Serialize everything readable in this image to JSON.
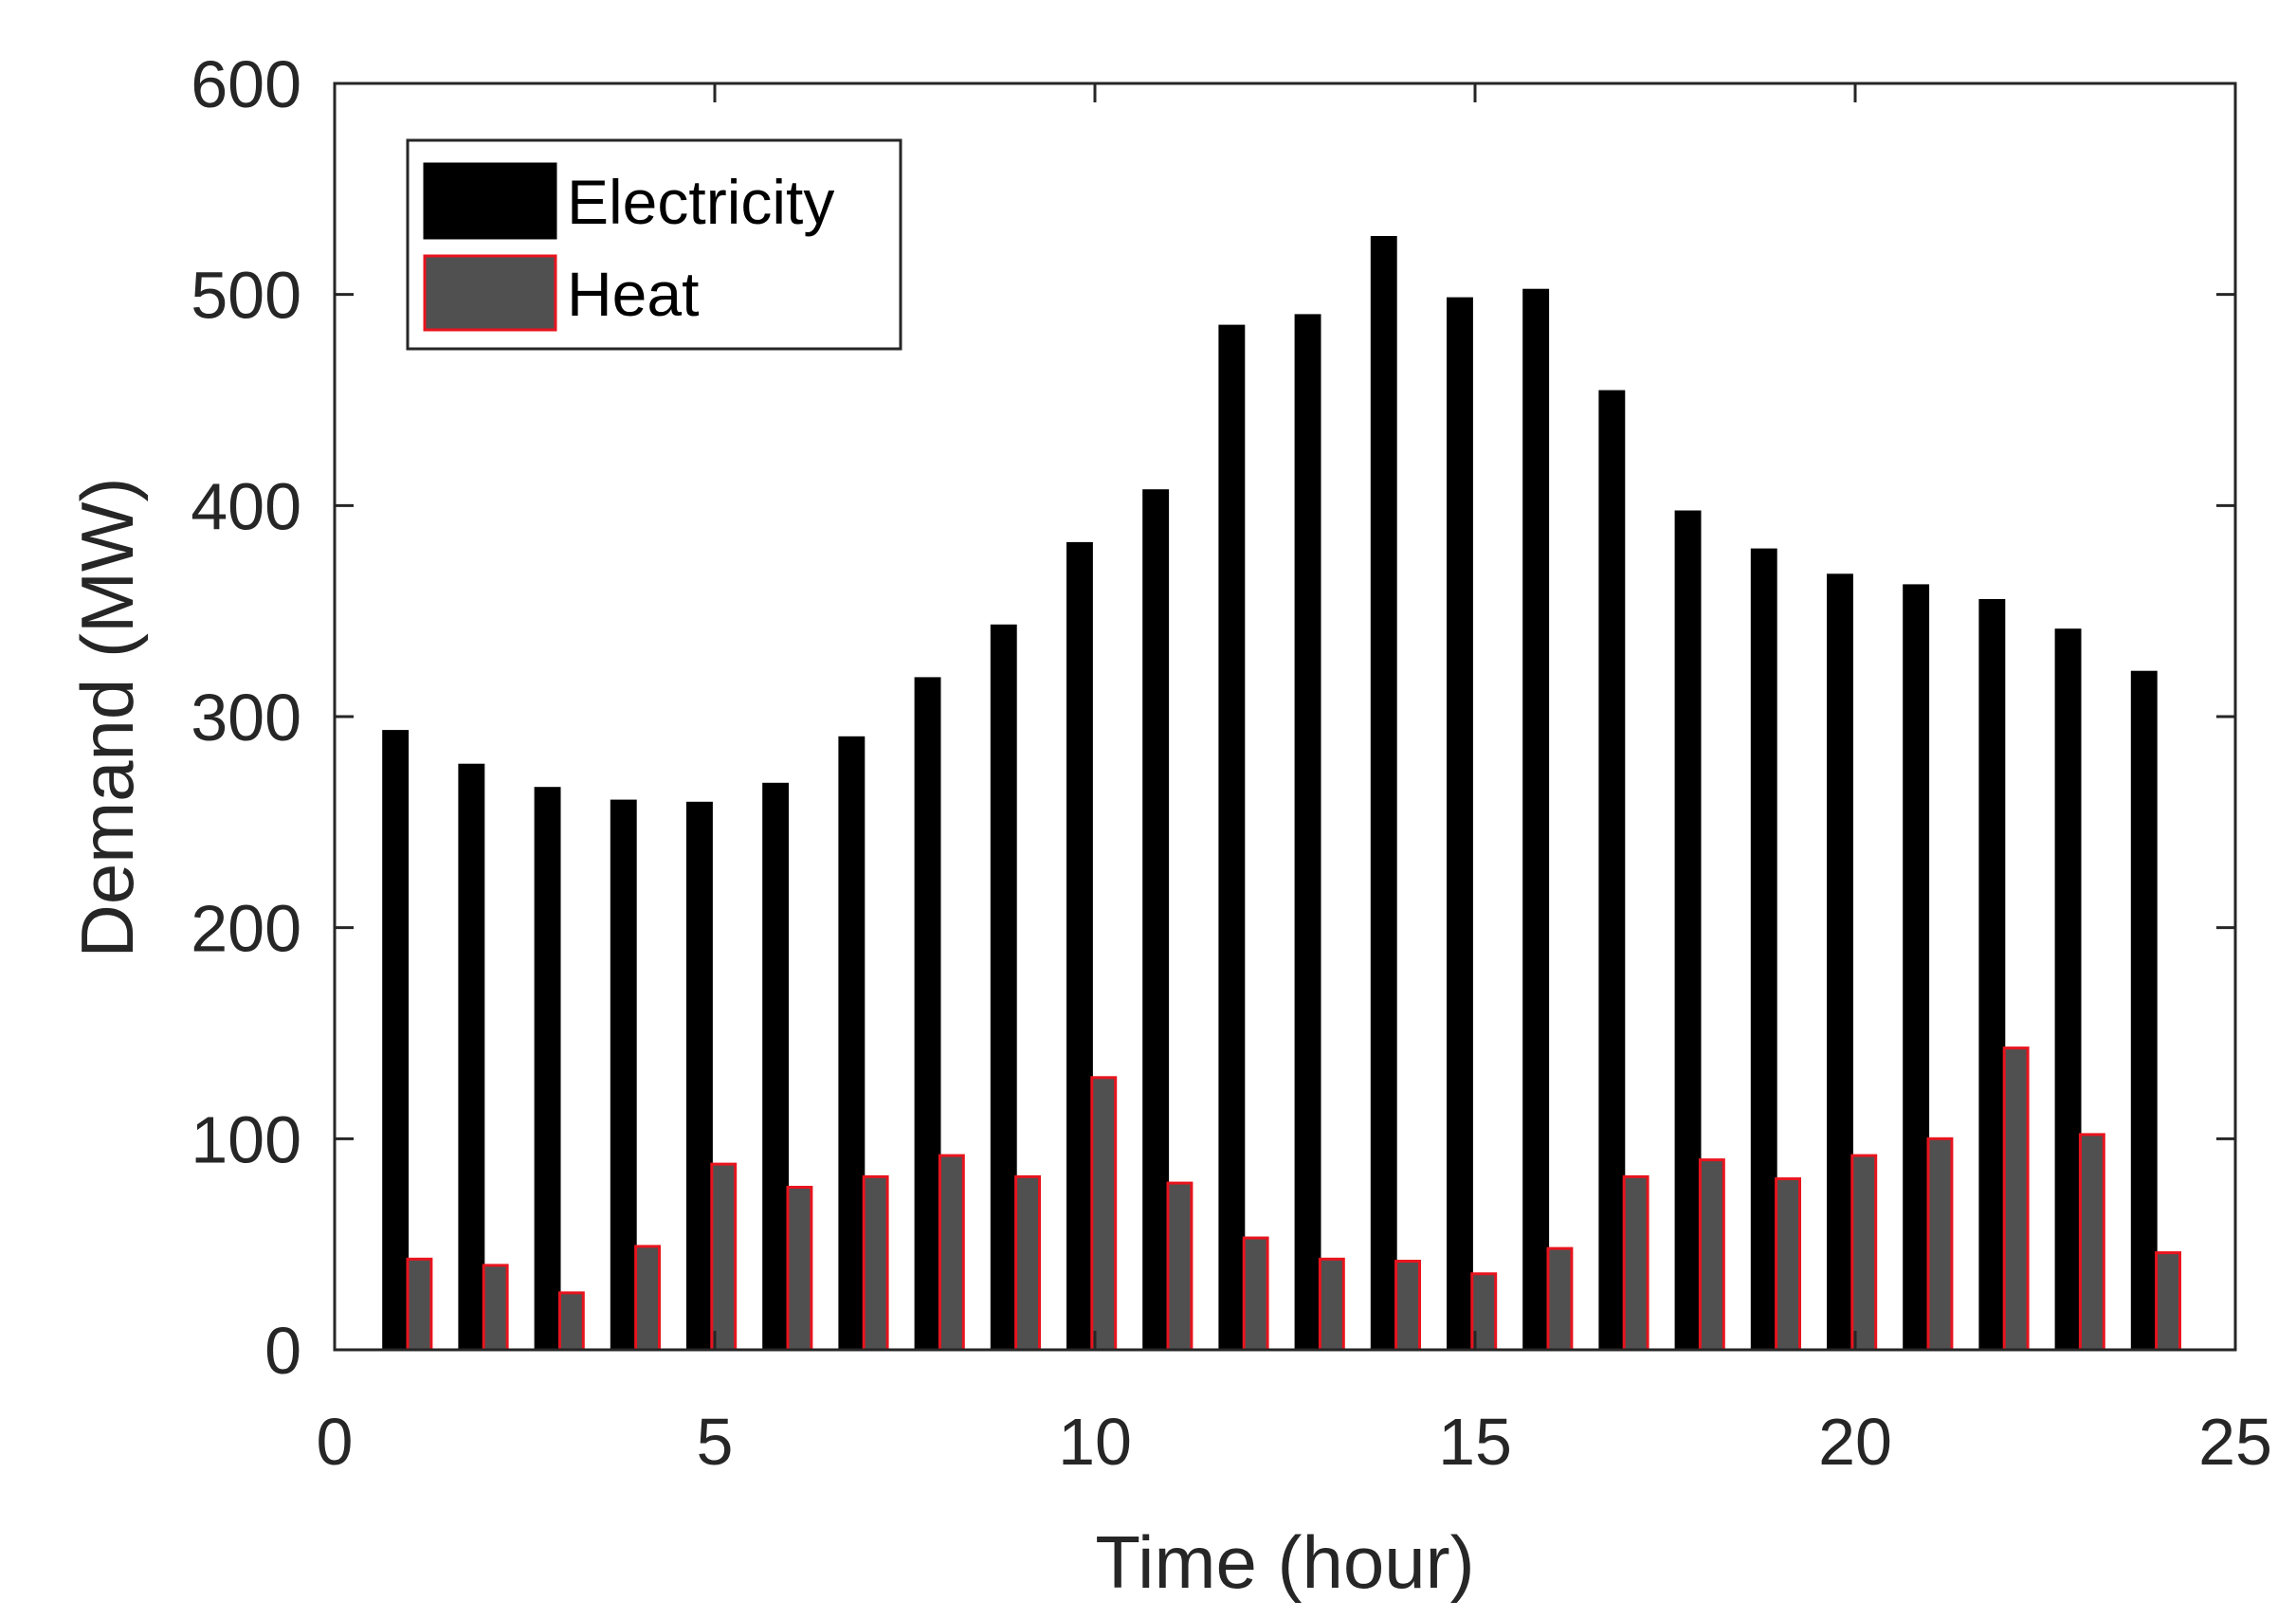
{
  "chart_data": {
    "type": "bar",
    "title": "",
    "xlabel": "Time (hour)",
    "ylabel": "Demand (MW)",
    "xlim": [
      0,
      25
    ],
    "ylim": [
      0,
      600
    ],
    "xticks": [
      0,
      5,
      10,
      15,
      20,
      25
    ],
    "yticks": [
      0,
      100,
      200,
      300,
      400,
      500,
      600
    ],
    "grid": false,
    "legend_position": "top-left",
    "x": [
      1,
      2,
      3,
      4,
      5,
      6,
      7,
      8,
      9,
      10,
      11,
      12,
      13,
      14,
      15,
      16,
      17,
      18,
      19,
      20,
      21,
      22,
      23,
      24
    ],
    "series": [
      {
        "name": "Electricity",
        "color": "#000000",
        "edge_color": "#000000",
        "values": [
          293,
          277,
          266,
          260,
          259,
          268,
          290,
          318,
          343,
          382,
          407,
          485,
          490,
          527,
          498,
          502,
          454,
          397,
          379,
          367,
          362,
          355,
          341,
          321
        ]
      },
      {
        "name": "Heat",
        "color": "#505050",
        "edge_color": "#e8141e",
        "values": [
          43,
          40,
          27,
          49,
          88,
          77,
          82,
          92,
          82,
          129,
          79,
          53,
          43,
          42,
          36,
          48,
          82,
          90,
          81,
          92,
          100,
          143,
          102,
          46
        ]
      }
    ]
  }
}
